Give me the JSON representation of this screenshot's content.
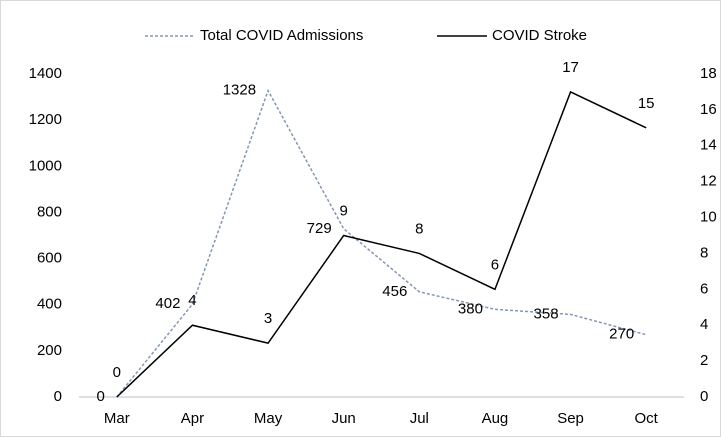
{
  "chart_data": {
    "type": "line",
    "categories": [
      "Mar",
      "Apr",
      "May",
      "Jun",
      "Jul",
      "Aug",
      "Sep",
      "Oct"
    ],
    "series": [
      {
        "name": "Total COVID Admissions",
        "color": "#8497b0",
        "dashed": true,
        "values": [
          0,
          402,
          1328,
          729,
          456,
          380,
          358,
          270
        ]
      },
      {
        "name": "COVID Stroke",
        "color": "#000000",
        "axis": "y2",
        "values": [
          0,
          4,
          3,
          9,
          8,
          6,
          17,
          15
        ]
      }
    ],
    "ylim": [
      0,
      1400
    ],
    "yticks": [
      0,
      200,
      400,
      600,
      800,
      1000,
      1200,
      1400
    ],
    "y2lim": [
      0,
      18
    ],
    "y2ticks": [
      0,
      2,
      4,
      6,
      8,
      10,
      12,
      14,
      16,
      18
    ],
    "legend": "top",
    "grid": false
  }
}
